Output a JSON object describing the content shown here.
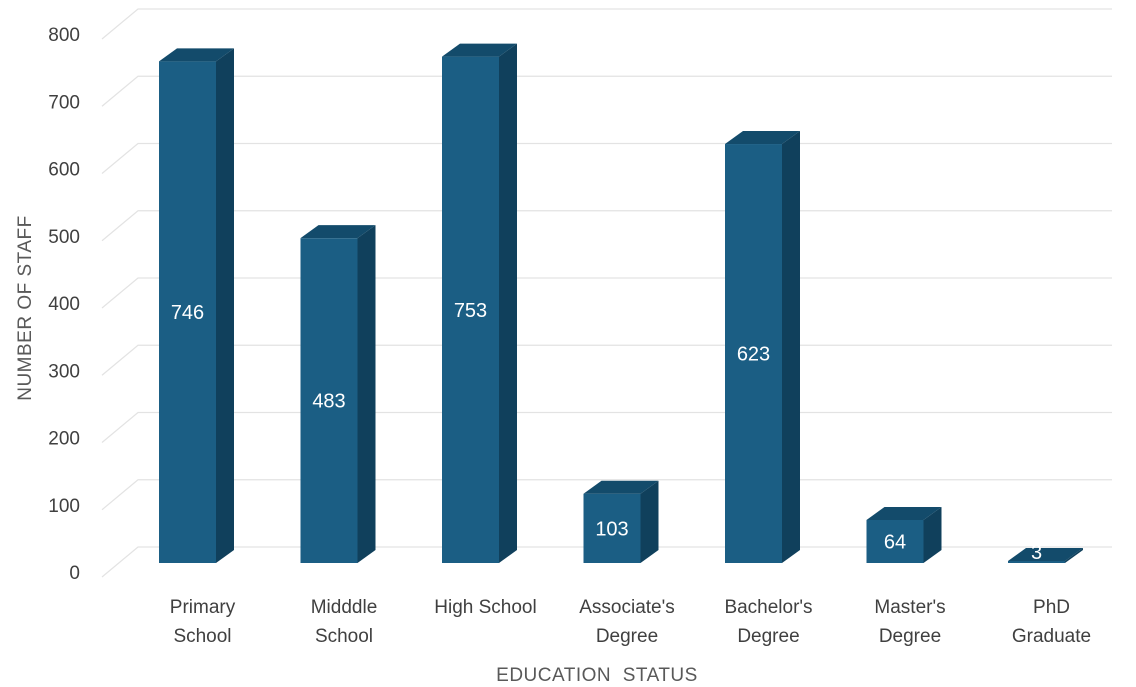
{
  "chart_data": {
    "type": "bar",
    "style": "3d-column",
    "categories": [
      [
        "Primary",
        "School"
      ],
      [
        "Midddle",
        "School"
      ],
      [
        "High School"
      ],
      [
        "Associate's",
        "Degree"
      ],
      [
        "Bachelor's",
        "Degree"
      ],
      [
        "Master's",
        "Degree"
      ],
      [
        "PhD",
        "Graduate"
      ]
    ],
    "values": [
      746,
      483,
      753,
      103,
      623,
      64,
      3
    ],
    "data_labels": [
      "746",
      "483",
      "753",
      "103",
      "623",
      "64",
      "3"
    ],
    "xlabel": "EDUCATION  STATUS",
    "ylabel": "NUMBER OF STAFF",
    "ylim": [
      0,
      800
    ],
    "yticks": [
      0,
      100,
      200,
      300,
      400,
      500,
      600,
      700,
      800
    ],
    "grid": true,
    "legend": "none",
    "colors": {
      "bar_front": "#1b5e84",
      "bar_side": "#10405c",
      "bar_top": "#134b6b",
      "grid": "#e3e3e3"
    }
  }
}
